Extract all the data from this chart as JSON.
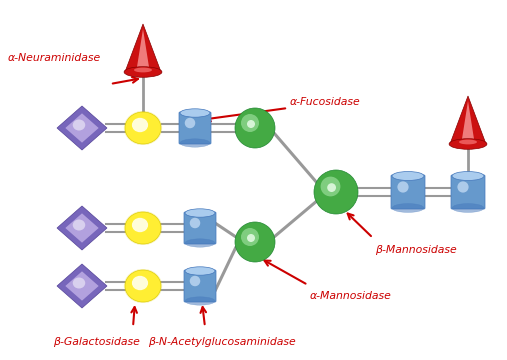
{
  "bg_color": "#ffffff",
  "label_color": "#cc0000",
  "line_color": "#999999",
  "cone_dark": "#cc1111",
  "cone_mid": "#ee4444",
  "cone_light": "#ffaaaa",
  "diamond_dark": "#7766bb",
  "diamond_mid": "#9988cc",
  "diamond_light": "#ccbbee",
  "yellow_dark": "#ddcc00",
  "yellow_mid": "#ffee33",
  "yellow_light": "#ffffcc",
  "blue_dark": "#4477bb",
  "blue_mid": "#6699cc",
  "blue_light": "#aaccee",
  "green_dark": "#228833",
  "green_mid": "#44aa44",
  "green_light": "#99dd99",
  "labels": {
    "alpha_neuraminidase": "α-Neuraminidase",
    "alpha_fucosidase": "α-Fucosidase",
    "beta_galactosidase": "β-Galactosidase",
    "beta_NAG": "β-N-Acetylglucosaminidase",
    "alpha_mannosidase": "α-Mannosidase",
    "beta_mannosidase": "β-Mannosidase"
  }
}
